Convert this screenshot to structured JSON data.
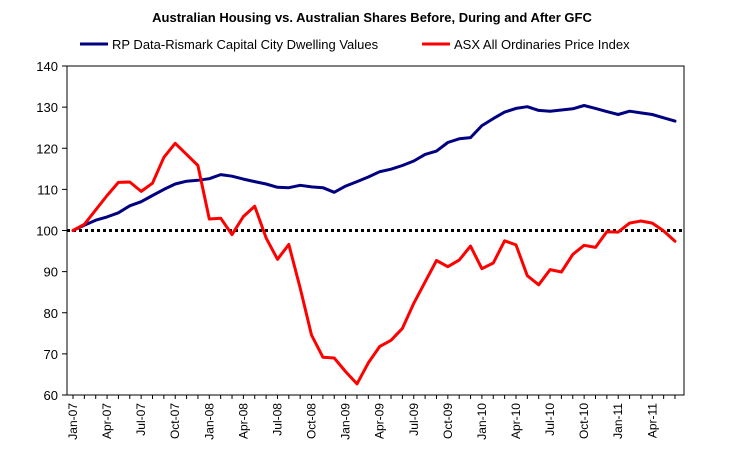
{
  "chart_data": {
    "type": "line",
    "title": "Australian Housing vs. Australian Shares Before, During and After GFC",
    "xlabel": "",
    "ylabel": "",
    "ylim": [
      60,
      140
    ],
    "yticks": [
      60,
      70,
      80,
      90,
      100,
      110,
      120,
      130,
      140
    ],
    "x_tick_labels": [
      "Jan-07",
      "Apr-07",
      "Jul-07",
      "Oct-07",
      "Jan-08",
      "Apr-08",
      "Jul-08",
      "Oct-08",
      "Jan-09",
      "Apr-09",
      "Jul-09",
      "Oct-09",
      "Jan-10",
      "Apr-10",
      "Jul-10",
      "Oct-10",
      "Jan-11",
      "Apr-11"
    ],
    "x": [
      "Jan-07",
      "Feb-07",
      "Mar-07",
      "Apr-07",
      "May-07",
      "Jun-07",
      "Jul-07",
      "Aug-07",
      "Sep-07",
      "Oct-07",
      "Nov-07",
      "Dec-07",
      "Jan-08",
      "Feb-08",
      "Mar-08",
      "Apr-08",
      "May-08",
      "Jun-08",
      "Jul-08",
      "Aug-08",
      "Sep-08",
      "Oct-08",
      "Nov-08",
      "Dec-08",
      "Jan-09",
      "Feb-09",
      "Mar-09",
      "Apr-09",
      "May-09",
      "Jun-09",
      "Jul-09",
      "Aug-09",
      "Sep-09",
      "Oct-09",
      "Nov-09",
      "Dec-09",
      "Jan-10",
      "Feb-10",
      "Mar-10",
      "Apr-10",
      "May-10",
      "Jun-10",
      "Jul-10",
      "Aug-10",
      "Sep-10",
      "Oct-10",
      "Nov-10",
      "Dec-10",
      "Jan-11",
      "Feb-11",
      "Mar-11",
      "Apr-11",
      "May-11",
      "Jun-11"
    ],
    "series": [
      {
        "name": "RP Data-Rismark Capital City Dwelling Values",
        "color": "#000080",
        "values": [
          100,
          101.3,
          102.5,
          103.3,
          104.3,
          106,
          107,
          108.5,
          110,
          111.3,
          112,
          112.2,
          112.6,
          113.6,
          113.2,
          112.5,
          111.9,
          111.3,
          110.5,
          110.4,
          111,
          110.6,
          110.4,
          109.3,
          110.8,
          111.9,
          113,
          114.3,
          114.9,
          115.8,
          116.9,
          118.5,
          119.3,
          121.4,
          122.3,
          122.6,
          125.5,
          127.2,
          128.8,
          129.7,
          130.1,
          129.2,
          129,
          129.3,
          129.6,
          130.4,
          129.7,
          128.9,
          128.2,
          129,
          128.6,
          128.2,
          127.4,
          126.6
        ]
      },
      {
        "name": "ASX All Ordinaries Price Index",
        "color": "#ff0000",
        "values": [
          100,
          101.5,
          105,
          108.5,
          111.7,
          111.8,
          109.5,
          111.5,
          117.8,
          121.2,
          118.5,
          115.8,
          102.8,
          103,
          99,
          103.4,
          105.9,
          98.2,
          93,
          96.6,
          86,
          74.6,
          69.2,
          69,
          65.7,
          62.7,
          67.8,
          71.8,
          73.3,
          76.2,
          82.3,
          87.5,
          92.7,
          91.2,
          92.8,
          96.2,
          90.7,
          92.1,
          97.5,
          96.5,
          89,
          86.8,
          90.5,
          89.9,
          94.2,
          96.4,
          95.9,
          99.7,
          99.6,
          101.8,
          102.3,
          101.8,
          99.9,
          97.4
        ]
      }
    ],
    "reference_line": {
      "y": 100,
      "style": "dotted",
      "color": "#000000"
    },
    "legend": "top-center",
    "grid": false
  }
}
